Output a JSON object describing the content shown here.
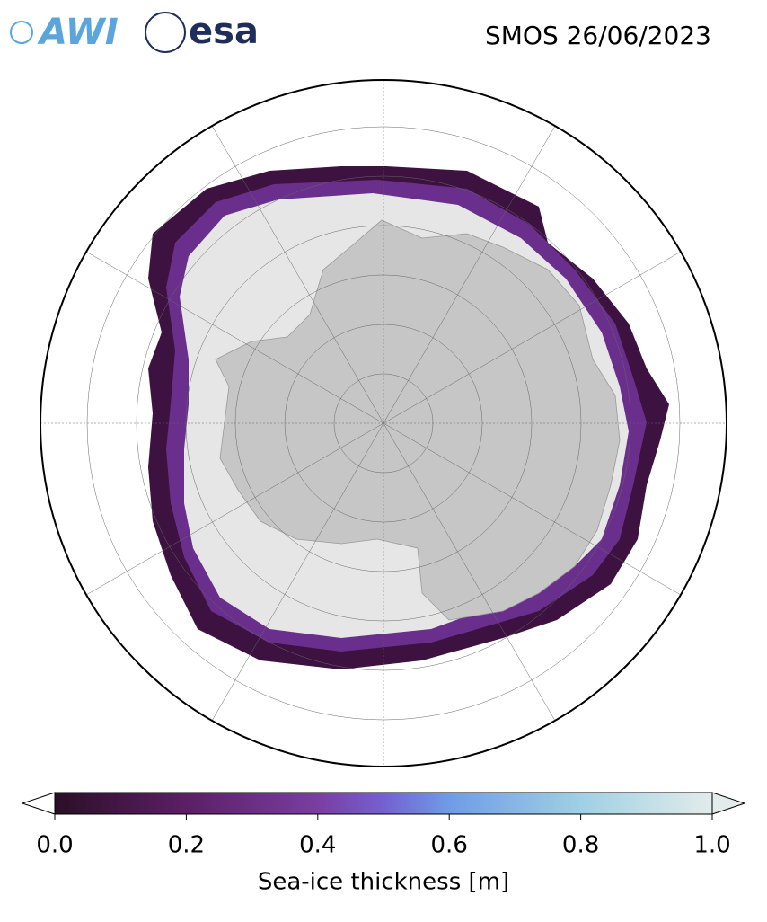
{
  "logos": {
    "left": "AWI",
    "right": "esa"
  },
  "map": {
    "title": "SMOS 26/06/2023",
    "colorbar": {
      "label": "Sea-ice thickness [m]",
      "lim": [
        0,
        1
      ],
      "ticks": [
        {
          "value": 0,
          "label": "0.0"
        },
        {
          "value": 0.2,
          "label": "0.2"
        },
        {
          "value": 0.4,
          "label": "0.4"
        },
        {
          "value": 0.6,
          "label": "0.6"
        },
        {
          "value": 0.8,
          "label": "0.8"
        },
        {
          "value": 1,
          "label": "1.0"
        }
      ]
    }
  }
}
